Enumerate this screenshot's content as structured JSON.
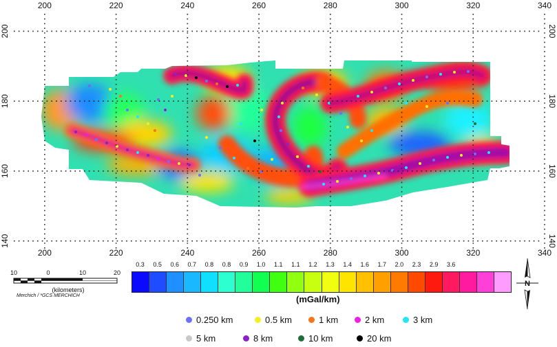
{
  "map": {
    "x_ticks": [
      "200",
      "220",
      "240",
      "260",
      "280",
      "300",
      "320",
      "340"
    ],
    "y_ticks": [
      "200",
      "180",
      "160",
      "140"
    ],
    "x_range": [
      190,
      340
    ],
    "y_range": [
      137,
      205
    ]
  },
  "scale_bar": {
    "ticks": [
      "10",
      "0",
      "10",
      "20"
    ],
    "units": "(kilometers)",
    "projection": "Merchich / *GCS MERCHICH"
  },
  "colorbar": {
    "labels": [
      "0.3",
      "0.5",
      "0.6",
      "0.7",
      "0.8",
      "0.8",
      "0.9",
      "1.0",
      "1.1",
      "1.1",
      "1.2",
      "1.3",
      "1.4",
      "1.6",
      "1.7",
      "2.0",
      "2.3",
      "2.9",
      "3.6"
    ],
    "colors": [
      "#0a0aff",
      "#1f4cff",
      "#1e90ff",
      "#19b8ff",
      "#10e0ff",
      "#2dffd0",
      "#22ff9a",
      "#10ff50",
      "#40ff10",
      "#90ff10",
      "#c8ff10",
      "#f0ff10",
      "#ffe400",
      "#ffc000",
      "#ffa000",
      "#ff7a00",
      "#ff4a00",
      "#ff1a10",
      "#ff1a60",
      "#ff1aa0",
      "#ff40d8",
      "#ff9cff"
    ],
    "units": "(mGal/km)"
  },
  "north_arrow": {
    "label": "N"
  },
  "legend": {
    "items": [
      {
        "label": "0.250 km",
        "color": "#6f6ff5"
      },
      {
        "label": "0.5 km",
        "color": "#f2ef22"
      },
      {
        "label": "1 km",
        "color": "#f5741c"
      },
      {
        "label": "2 km",
        "color": "#f01de6"
      },
      {
        "label": "3 km",
        "color": "#22e6f2"
      },
      {
        "label": "5 km",
        "color": "#c8c8c8"
      },
      {
        "label": "8 km",
        "color": "#8a22c8"
      },
      {
        "label": "10 km",
        "color": "#1e6e38"
      },
      {
        "label": "20 km",
        "color": "#000000"
      }
    ]
  }
}
